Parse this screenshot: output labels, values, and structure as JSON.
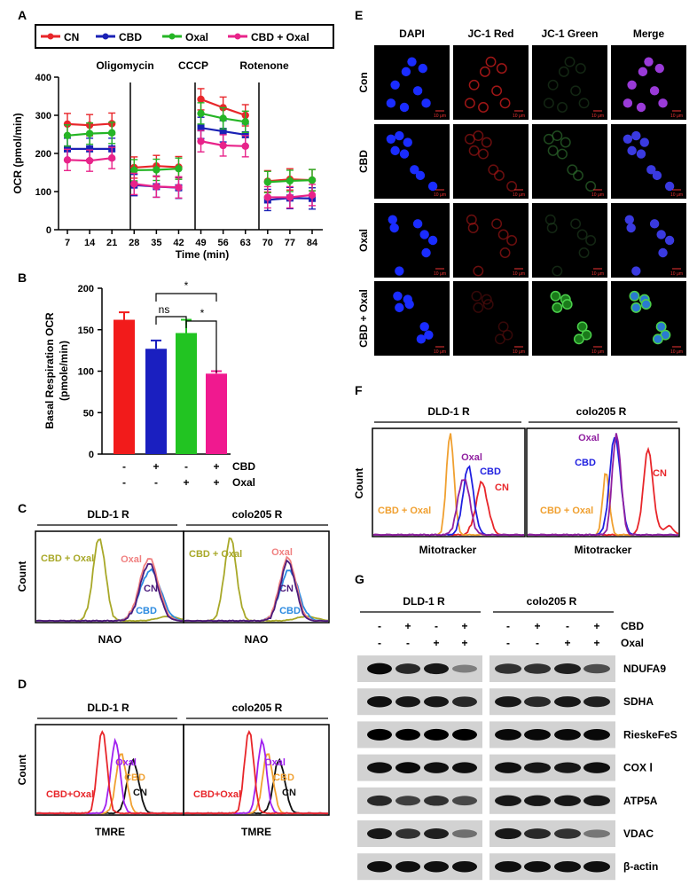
{
  "panels": {
    "A": {
      "letter": "A",
      "legend": [
        "CN",
        "CBD",
        "Oxal",
        "CBD + Oxal"
      ],
      "colors": [
        "#e8262a",
        "#1a21b5",
        "#25b525",
        "#e8238a"
      ],
      "ylabel": "OCR (pmol/min)",
      "xlabel": "Time (min)",
      "yticks": [
        "0",
        "100",
        "200",
        "300",
        "400"
      ],
      "xticks": [
        "7",
        "14",
        "21",
        "28",
        "35",
        "42",
        "49",
        "56",
        "63",
        "70",
        "77",
        "84"
      ],
      "injections": [
        "Oligomycin",
        "CCCP",
        "Rotenone"
      ]
    },
    "B": {
      "letter": "B",
      "ylabel1": "Basal Respiration OCR",
      "ylabel2": "(pmole/min)",
      "yticks": [
        "0",
        "50",
        "100",
        "150",
        "200"
      ],
      "cbd_label": "CBD",
      "oxal_label": "Oxal",
      "cbd_signs": [
        "-",
        "+",
        "-",
        "+"
      ],
      "oxal_signs": [
        "-",
        "-",
        "+",
        "+"
      ],
      "sig": [
        "ns",
        "*",
        "*"
      ],
      "colors": [
        "#f21b1b",
        "#1a1fc0",
        "#22c422",
        "#f0198f"
      ]
    },
    "C": {
      "letter": "C",
      "left_title": "DLD-1 R",
      "right_title": "colo205 R",
      "ylabel": "Count",
      "xlabel": "NAO",
      "labels": [
        "CBD + Oxal",
        "Oxal",
        "CN",
        "CBD"
      ],
      "colors": [
        "#a8a828",
        "#f08080",
        "#4b1b7c",
        "#2b8ae0"
      ]
    },
    "D": {
      "letter": "D",
      "left_title": "DLD-1 R",
      "right_title": "colo205 R",
      "ylabel": "Count",
      "xlabel": "TMRE",
      "labels": [
        "CBD+Oxal",
        "Oxal",
        "CBD",
        "CN"
      ],
      "colors": [
        "#e8262a",
        "#a020f0",
        "#f0a030",
        "#111111"
      ]
    },
    "E": {
      "letter": "E",
      "columns": [
        "DAPI",
        "JC-1 Red",
        "JC-1 Green",
        "Merge"
      ],
      "rows": [
        "Con",
        "CBD",
        "Oxal",
        "CBD + Oxal"
      ],
      "scale": "10 μm"
    },
    "F": {
      "letter": "F",
      "left_title": "DLD-1 R",
      "right_title": "colo205 R",
      "ylabel": "Count",
      "xlabel": "Mitotracker",
      "labels": [
        "CBD + Oxal",
        "Oxal",
        "CBD",
        "CN"
      ],
      "colors": [
        "#f0a030",
        "#9020a0",
        "#2020e0",
        "#e8262a"
      ]
    },
    "G": {
      "letter": "G",
      "left_title": "DLD-1 R",
      "right_title": "colo205 R",
      "cbd_label": "CBD",
      "oxal_label": "Oxal",
      "cbd_signs": [
        "-",
        "+",
        "-",
        "+"
      ],
      "oxal_signs": [
        "-",
        "-",
        "+",
        "+"
      ],
      "proteins": [
        "NDUFA9",
        "SDHA",
        "RieskeFeS",
        "COX Ⅰ",
        "ATP5A",
        "VDAC",
        "β-actin"
      ],
      "intensity_dld": [
        [
          0.95,
          0.75,
          0.85,
          0.2
        ],
        [
          0.9,
          0.85,
          0.85,
          0.75
        ],
        [
          1,
          1,
          1,
          1
        ],
        [
          0.9,
          0.95,
          0.9,
          0.9
        ],
        [
          0.75,
          0.6,
          0.7,
          0.55
        ],
        [
          0.85,
          0.7,
          0.8,
          0.3
        ],
        [
          0.9,
          0.9,
          0.9,
          0.9
        ]
      ],
      "intensity_colo": [
        [
          0.7,
          0.7,
          0.8,
          0.5
        ],
        [
          0.85,
          0.75,
          0.85,
          0.8
        ],
        [
          0.95,
          0.95,
          0.95,
          0.95
        ],
        [
          0.9,
          0.85,
          0.85,
          0.9
        ],
        [
          0.85,
          0.85,
          0.85,
          0.85
        ],
        [
          0.85,
          0.75,
          0.7,
          0.25
        ],
        [
          0.9,
          0.9,
          0.9,
          0.9
        ]
      ]
    }
  },
  "chart_data": [
    {
      "type": "line",
      "panel": "A",
      "xlabel": "Time (min)",
      "ylabel": "OCR (pmol/min)",
      "ylim": [
        0,
        400
      ],
      "x": [
        7,
        14,
        21,
        28,
        35,
        42,
        49,
        56,
        63,
        70,
        77,
        84
      ],
      "series": [
        {
          "name": "CN",
          "values": [
            277,
            274,
            278,
            163,
            167,
            164,
            342,
            320,
            300,
            127,
            132,
            130
          ]
        },
        {
          "name": "CBD",
          "values": [
            212,
            212,
            212,
            117,
            113,
            110,
            267,
            258,
            249,
            78,
            83,
            82
          ]
        },
        {
          "name": "Oxal",
          "values": [
            247,
            252,
            254,
            156,
            157,
            160,
            305,
            292,
            283,
            125,
            128,
            130
          ]
        },
        {
          "name": "CBD + Oxal",
          "values": [
            183,
            181,
            188,
            120,
            113,
            111,
            232,
            221,
            219,
            85,
            85,
            91
          ]
        }
      ]
    },
    {
      "type": "bar",
      "panel": "B",
      "ylabel": "Basal Respiration OCR (pmole/min)",
      "ylim": [
        0,
        200
      ],
      "categories": [
        "- / -",
        "+ / -",
        "- / +",
        "+ / +"
      ],
      "values": [
        162,
        127,
        146,
        97
      ],
      "errors": [
        9,
        10,
        16,
        3
      ]
    }
  ]
}
